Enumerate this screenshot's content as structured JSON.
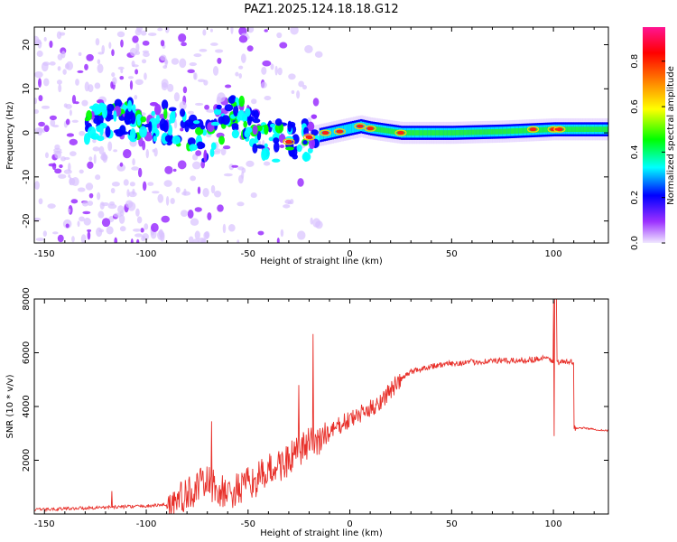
{
  "figure": {
    "title": "PAZ1.2025.124.18.18.G12"
  },
  "chart_data": [
    {
      "type": "heatmap",
      "title": "PAZ1.2025.124.18.18.G12",
      "xlabel": "Height of straight line (km)",
      "ylabel": "Frequency (Hz)",
      "xlim": [
        -155,
        127
      ],
      "ylim": [
        -25,
        24
      ],
      "xticks": [
        -150,
        -100,
        -50,
        0,
        50,
        100
      ],
      "yticks": [
        -20,
        -10,
        0,
        10,
        20
      ],
      "colorbar": {
        "label": "Normalized spectral amplitude",
        "range": [
          0,
          0.95
        ],
        "ticks": [
          0.0,
          0.2,
          0.4,
          0.6,
          0.8
        ],
        "colormap": [
          "#f0e8ff",
          "#9b30ff",
          "#0000ff",
          "#00ffff",
          "#00ff00",
          "#ffff00",
          "#ff8000",
          "#ff0000",
          "#ff1493"
        ]
      },
      "ridge": [
        {
          "x": -125,
          "y": 3
        },
        {
          "x": -110,
          "y": 3
        },
        {
          "x": -95,
          "y": 3
        },
        {
          "x": -80,
          "y": 0
        },
        {
          "x": -70,
          "y": -3
        },
        {
          "x": -60,
          "y": 5
        },
        {
          "x": -50,
          "y": 2
        },
        {
          "x": -40,
          "y": -2
        },
        {
          "x": -30,
          "y": -2
        },
        {
          "x": -20,
          "y": -1
        },
        {
          "x": -10,
          "y": 0
        },
        {
          "x": 0,
          "y": 1
        },
        {
          "x": 5,
          "y": 1.5
        },
        {
          "x": 10,
          "y": 1
        },
        {
          "x": 25,
          "y": 0
        },
        {
          "x": 50,
          "y": 0
        },
        {
          "x": 75,
          "y": 0.3
        },
        {
          "x": 100,
          "y": 0.8
        },
        {
          "x": 110,
          "y": 0.8
        },
        {
          "x": 127,
          "y": 0.8
        }
      ]
    },
    {
      "type": "line",
      "xlabel": "Height of straight line (km)",
      "ylabel": "SNR (10 * v/v)",
      "xlim": [
        -155,
        127
      ],
      "ylim": [
        0,
        8000
      ],
      "xticks": [
        -150,
        -100,
        -50,
        0,
        50,
        100
      ],
      "yticks": [
        2000,
        4000,
        6000,
        8000
      ],
      "color": "#e8302a",
      "series": [
        {
          "x": [
            -155,
            -140,
            -120,
            -100,
            -90,
            -85,
            -80,
            -75,
            -70,
            -65,
            -60,
            -55,
            -50,
            -45,
            -40,
            -35,
            -30,
            -25,
            -20,
            -15,
            -10,
            -5,
            0,
            5,
            10,
            15,
            20,
            25,
            30,
            40,
            50,
            60,
            70,
            80,
            90,
            95,
            100,
            101,
            102,
            105,
            110,
            111,
            115,
            120,
            127
          ],
          "y": [
            150,
            200,
            250,
            300,
            350,
            500,
            700,
            1000,
            1200,
            900,
            700,
            900,
            1100,
            1300,
            1600,
            1800,
            2000,
            2300,
            2600,
            2800,
            3000,
            3300,
            3500,
            3700,
            3900,
            4200,
            4600,
            5000,
            5300,
            5500,
            5600,
            5650,
            5700,
            5700,
            5750,
            5800,
            5700,
            8000,
            5650,
            5650,
            5650,
            3200,
            3200,
            3150,
            3100
          ]
        }
      ],
      "spikes": [
        {
          "x": -117,
          "y": 850
        },
        {
          "x": -68,
          "y": 3450
        },
        {
          "x": -18,
          "y": 6700
        },
        {
          "x": -25,
          "y": 4800
        },
        {
          "x": 100.5,
          "y": 2900
        }
      ]
    }
  ]
}
